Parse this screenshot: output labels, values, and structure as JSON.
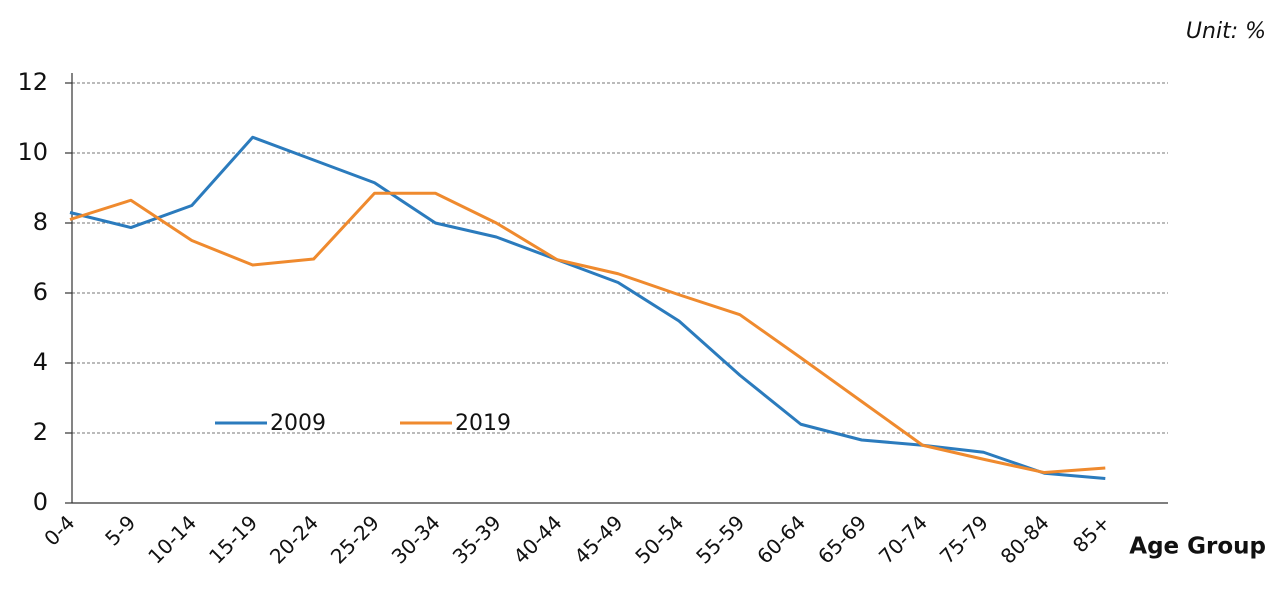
{
  "chart_data": {
    "type": "line",
    "unit_label": "Unit: %",
    "x_label": "Age Group",
    "categories": [
      "0-4",
      "5-9",
      "10-14",
      "15-19",
      "20-24",
      "25-29",
      "30-34",
      "35-39",
      "40-44",
      "45-49",
      "50-54",
      "55-59",
      "60-64",
      "65-69",
      "70-74",
      "75-79",
      "80-84",
      "85+"
    ],
    "series": [
      {
        "name": "2009",
        "color": "#2b7bbd",
        "values": [
          8.3,
          7.87,
          8.5,
          10.45,
          9.8,
          9.15,
          8.0,
          7.6,
          6.95,
          6.3,
          5.2,
          3.65,
          2.25,
          1.8,
          1.65,
          1.45,
          0.85,
          0.7
        ]
      },
      {
        "name": "2019",
        "color": "#ef8a2e",
        "values": [
          8.1,
          8.65,
          7.5,
          6.8,
          6.97,
          8.85,
          8.85,
          8.0,
          6.95,
          6.55,
          5.95,
          5.38,
          4.15,
          2.9,
          1.65,
          1.25,
          0.87,
          1.0
        ]
      }
    ],
    "ylim": [
      0,
      12
    ],
    "yticks": [
      0,
      2,
      4,
      6,
      8,
      10,
      12
    ],
    "grid": true
  }
}
